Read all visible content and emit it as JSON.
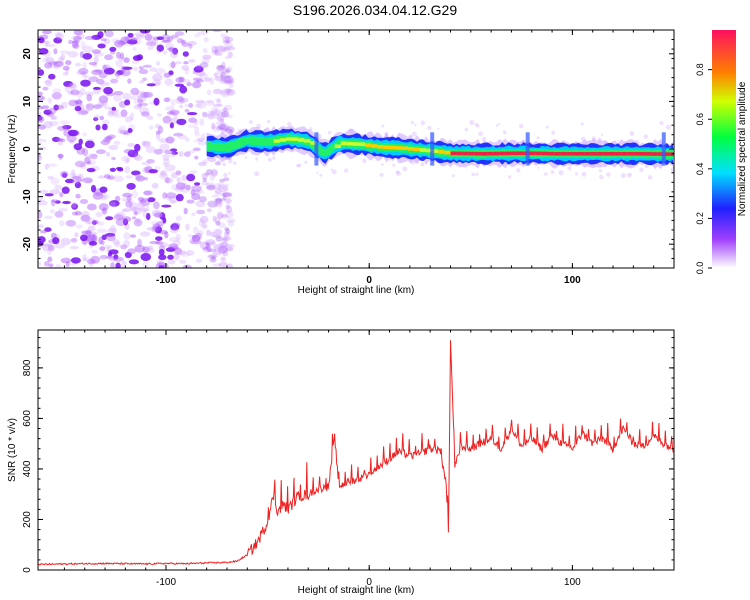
{
  "title": "S196.2026.034.04.12.G29",
  "colors": {
    "snr_line": "#ee2222",
    "ridge_low": "#2244ff",
    "ridge_mid": "#22dd55",
    "ridge_high": "#ee2244",
    "noise": "#9933ff"
  },
  "chart_data": [
    {
      "type": "heatmap",
      "name": "spectrogram",
      "xlabel": "Height of straight line (km)",
      "ylabel": "Frequency (Hz)",
      "xlim": [
        -163,
        150
      ],
      "ylim": [
        -25,
        25
      ],
      "xticks": [
        -100,
        0,
        100
      ],
      "xtick_labels": [
        "-100",
        "0",
        "100"
      ],
      "yticks": [
        -20,
        -10,
        0,
        10,
        20
      ],
      "ytick_labels": [
        "-20",
        "-10",
        "0",
        "10",
        "20"
      ],
      "noise_region_km": [
        -163,
        -75
      ],
      "ridge": [
        {
          "x": -80,
          "f": 0.6,
          "amp": 0.25
        },
        {
          "x": -70,
          "f": 0.3,
          "amp": 0.45
        },
        {
          "x": -60,
          "f": 1.8,
          "amp": 0.35
        },
        {
          "x": -50,
          "f": 1.5,
          "amp": 0.5
        },
        {
          "x": -40,
          "f": 2.2,
          "amp": 0.65
        },
        {
          "x": -30,
          "f": 1.6,
          "amp": 0.55
        },
        {
          "x": -22,
          "f": -1.0,
          "amp": 0.4
        },
        {
          "x": -15,
          "f": 1.2,
          "amp": 0.6
        },
        {
          "x": -5,
          "f": 1.0,
          "amp": 0.7
        },
        {
          "x": 5,
          "f": 0.4,
          "amp": 0.75
        },
        {
          "x": 15,
          "f": 0.2,
          "amp": 0.85
        },
        {
          "x": 30,
          "f": -0.4,
          "amp": 0.6
        },
        {
          "x": 40,
          "f": -0.9,
          "amp": 0.95
        },
        {
          "x": 55,
          "f": -1.0,
          "amp": 0.95
        },
        {
          "x": 70,
          "f": -0.9,
          "amp": 0.95
        },
        {
          "x": 80,
          "f": -0.9,
          "amp": 0.9
        },
        {
          "x": 90,
          "f": -1.0,
          "amp": 0.95
        },
        {
          "x": 110,
          "f": -1.0,
          "amp": 0.95
        },
        {
          "x": 130,
          "f": -1.0,
          "amp": 0.95
        },
        {
          "x": 150,
          "f": -1.1,
          "amp": 0.9
        }
      ],
      "colorbar": {
        "label": "Normalized spectral amplitude",
        "range": [
          0,
          0.96
        ],
        "ticks": [
          0.0,
          0.2,
          0.4,
          0.6,
          0.8
        ],
        "tick_labels": [
          "0.0",
          "0.2",
          "0.4",
          "0.6",
          "0.8"
        ]
      }
    },
    {
      "type": "line",
      "name": "snr",
      "xlabel": "Height of straight line (km)",
      "ylabel": "SNR (10 * v/v)",
      "xlim": [
        -163,
        150
      ],
      "ylim": [
        0,
        950
      ],
      "xticks": [
        -100,
        0,
        100
      ],
      "xtick_labels": [
        "-100",
        "0",
        "100"
      ],
      "yticks": [
        0,
        200,
        400,
        600,
        800
      ],
      "ytick_labels": [
        "0",
        "200",
        "400",
        "600",
        "800"
      ],
      "series": [
        {
          "name": "SNR",
          "x": [
            -163,
            -150,
            -140,
            -130,
            -120,
            -110,
            -100,
            -90,
            -80,
            -70,
            -65,
            -60,
            -55,
            -50,
            -47,
            -45,
            -42,
            -40,
            -35,
            -30,
            -25,
            -20,
            -17,
            -15,
            -10,
            -5,
            0,
            5,
            10,
            15,
            20,
            25,
            30,
            35,
            38,
            39,
            40,
            41,
            42,
            45,
            50,
            55,
            60,
            65,
            70,
            75,
            80,
            85,
            90,
            95,
            100,
            105,
            110,
            115,
            120,
            125,
            130,
            135,
            140,
            145,
            150
          ],
          "values": [
            22,
            24,
            25,
            26,
            25,
            24,
            26,
            25,
            28,
            30,
            35,
            60,
            110,
            190,
            300,
            230,
            260,
            240,
            290,
            300,
            320,
            330,
            530,
            330,
            350,
            360,
            380,
            410,
            440,
            470,
            450,
            460,
            480,
            470,
            330,
            140,
            900,
            700,
            400,
            490,
            480,
            500,
            520,
            480,
            560,
            490,
            520,
            480,
            530,
            500,
            480,
            540,
            500,
            520,
            480,
            560,
            500,
            490,
            530,
            500,
            480
          ]
        }
      ]
    }
  ]
}
